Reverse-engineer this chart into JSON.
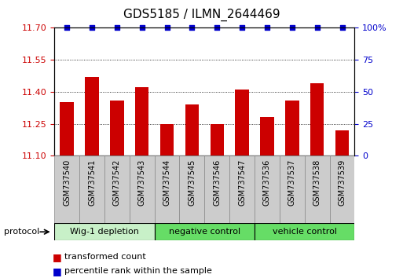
{
  "title": "GDS5185 / ILMN_2644469",
  "samples": [
    "GSM737540",
    "GSM737541",
    "GSM737542",
    "GSM737543",
    "GSM737544",
    "GSM737545",
    "GSM737546",
    "GSM737547",
    "GSM737536",
    "GSM737537",
    "GSM737538",
    "GSM737539"
  ],
  "bar_values": [
    11.35,
    11.47,
    11.36,
    11.42,
    11.25,
    11.34,
    11.25,
    11.41,
    11.28,
    11.36,
    11.44,
    11.22
  ],
  "y_min": 11.1,
  "y_max": 11.7,
  "y_ticks": [
    11.1,
    11.25,
    11.4,
    11.55,
    11.7
  ],
  "y2_ticks": [
    0,
    25,
    50,
    75,
    100
  ],
  "bar_color": "#cc0000",
  "percentile_color": "#0000cc",
  "groups": [
    {
      "label": "Wig-1 depletion",
      "count": 4,
      "color": "#c8f0c8"
    },
    {
      "label": "negative control",
      "count": 4,
      "color": "#66dd66"
    },
    {
      "label": "vehicle control",
      "count": 4,
      "color": "#66dd66"
    }
  ],
  "protocol_label": "protocol",
  "legend_bar_label": "transformed count",
  "legend_dot_label": "percentile rank within the sample",
  "bar_width": 0.55,
  "background_color": "#ffffff",
  "tick_label_color_left": "#cc0000",
  "tick_label_color_right": "#0000cc",
  "sample_box_color": "#cccccc",
  "sample_box_edge": "#888888",
  "title_fontsize": 11,
  "tick_fontsize": 8,
  "label_fontsize": 8
}
